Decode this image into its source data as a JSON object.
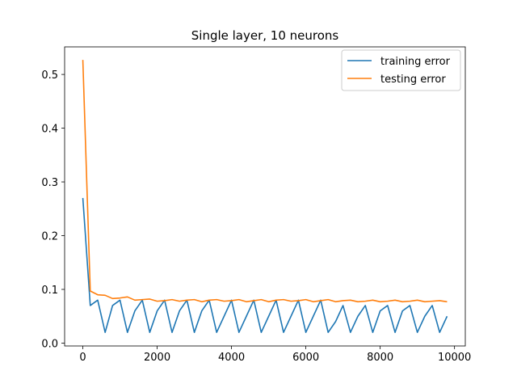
{
  "chart_data": {
    "type": "line",
    "title": "Single layer, 10 neurons",
    "xlabel": "",
    "ylabel": "",
    "xlim": [
      -490,
      10290
    ],
    "ylim": [
      -0.0053,
      0.5513
    ],
    "x_ticks": [
      0,
      2000,
      4000,
      6000,
      8000,
      10000
    ],
    "x_tick_labels": [
      "0",
      "2000",
      "4000",
      "6000",
      "8000",
      "10000"
    ],
    "y_ticks": [
      0.0,
      0.1,
      0.2,
      0.3,
      0.4,
      0.5
    ],
    "y_tick_labels": [
      "0.0",
      "0.1",
      "0.2",
      "0.3",
      "0.4",
      "0.5"
    ],
    "grid": false,
    "legend_position": "top-right",
    "colors": {
      "training": "#1f77b4",
      "testing": "#ff7f0e"
    },
    "x": [
      0,
      200,
      400,
      600,
      800,
      1000,
      1200,
      1400,
      1600,
      1800,
      2000,
      2200,
      2400,
      2600,
      2800,
      3000,
      3200,
      3400,
      3600,
      3800,
      4000,
      4200,
      4400,
      4600,
      4800,
      5000,
      5200,
      5400,
      5600,
      5800,
      6000,
      6200,
      6400,
      6600,
      6800,
      7000,
      7200,
      7400,
      7600,
      7800,
      8000,
      8200,
      8400,
      8600,
      8800,
      9000,
      9200,
      9400,
      9600,
      9800
    ],
    "series": [
      {
        "name": "training error",
        "values": [
          0.27,
          0.07,
          0.08,
          0.02,
          0.07,
          0.08,
          0.02,
          0.06,
          0.08,
          0.02,
          0.06,
          0.08,
          0.02,
          0.06,
          0.08,
          0.02,
          0.06,
          0.08,
          0.02,
          0.05,
          0.08,
          0.02,
          0.05,
          0.08,
          0.02,
          0.05,
          0.08,
          0.02,
          0.05,
          0.08,
          0.02,
          0.05,
          0.08,
          0.02,
          0.04,
          0.07,
          0.02,
          0.05,
          0.07,
          0.02,
          0.06,
          0.07,
          0.02,
          0.06,
          0.07,
          0.02,
          0.05,
          0.07,
          0.02,
          0.05
        ]
      },
      {
        "name": "testing error",
        "values": [
          0.527,
          0.097,
          0.09,
          0.089,
          0.083,
          0.084,
          0.086,
          0.08,
          0.081,
          0.082,
          0.078,
          0.079,
          0.081,
          0.078,
          0.08,
          0.081,
          0.077,
          0.08,
          0.081,
          0.078,
          0.079,
          0.081,
          0.077,
          0.079,
          0.081,
          0.077,
          0.08,
          0.081,
          0.078,
          0.079,
          0.081,
          0.077,
          0.079,
          0.081,
          0.077,
          0.079,
          0.08,
          0.077,
          0.078,
          0.08,
          0.077,
          0.078,
          0.08,
          0.077,
          0.078,
          0.08,
          0.077,
          0.078,
          0.079,
          0.077
        ]
      }
    ]
  }
}
